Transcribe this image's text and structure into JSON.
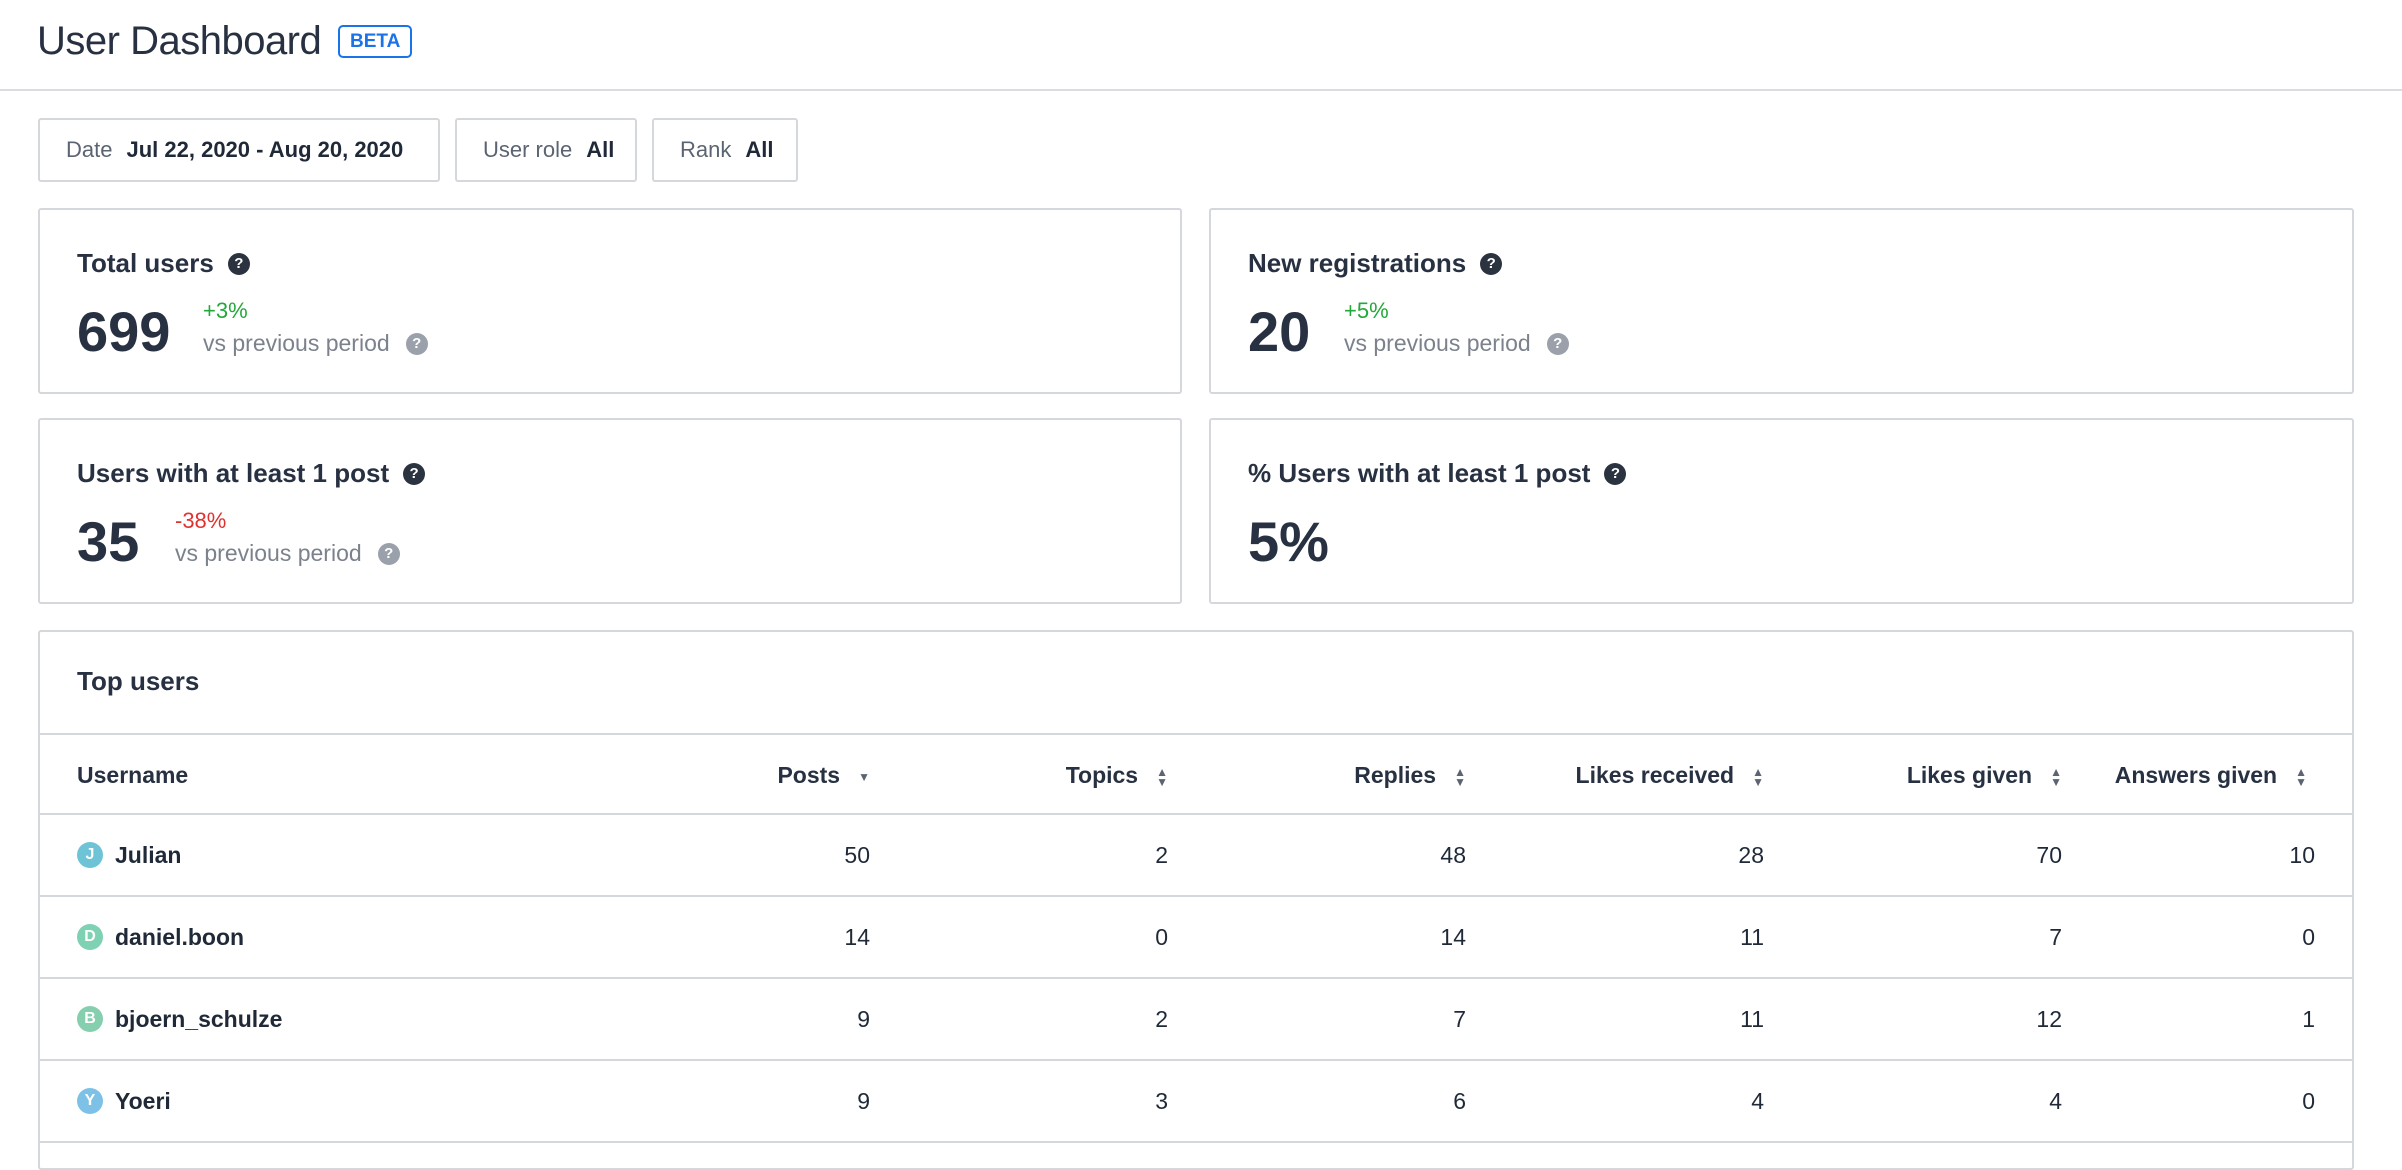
{
  "header": {
    "title": "User Dashboard",
    "badge": "BETA"
  },
  "filters": [
    {
      "label": "Date",
      "value": "Jul 22, 2020 - Aug 20, 2020"
    },
    {
      "label": "User role",
      "value": "All"
    },
    {
      "label": "Rank",
      "value": "All"
    }
  ],
  "stats": {
    "total_users": {
      "title": "Total users",
      "value": "699",
      "delta": "+3%",
      "compare": "vs previous period"
    },
    "new_registrations": {
      "title": "New registrations",
      "value": "20",
      "delta": "+5%",
      "compare": "vs previous period"
    },
    "users_with_post": {
      "title": "Users with at least 1 post",
      "value": "35",
      "delta": "-38%",
      "compare": "vs previous period"
    },
    "pct_users_with_post": {
      "title": "% Users with at least 1 post",
      "value": "5%"
    }
  },
  "top_users": {
    "title": "Top users",
    "columns": [
      "Username",
      "Posts",
      "Topics",
      "Replies",
      "Likes received",
      "Likes given",
      "Answers given"
    ],
    "rows": [
      {
        "avatar": "J",
        "avatar_color": "#6fc3d6",
        "username": "Julian",
        "posts": "50",
        "topics": "2",
        "replies": "48",
        "likes_received": "28",
        "likes_given": "70",
        "answers_given": "10"
      },
      {
        "avatar": "D",
        "avatar_color": "#7fd1b3",
        "username": "daniel.boon",
        "posts": "14",
        "topics": "0",
        "replies": "14",
        "likes_received": "11",
        "likes_given": "7",
        "answers_given": "0"
      },
      {
        "avatar": "B",
        "avatar_color": "#86cfae",
        "username": "bjoern_schulze",
        "posts": "9",
        "topics": "2",
        "replies": "7",
        "likes_received": "11",
        "likes_given": "12",
        "answers_given": "1"
      },
      {
        "avatar": "Y",
        "avatar_color": "#7ec1e6",
        "username": "Yoeri",
        "posts": "9",
        "topics": "3",
        "replies": "6",
        "likes_received": "4",
        "likes_given": "4",
        "answers_given": "0"
      }
    ]
  },
  "colors": {
    "accent": "#1a73e8",
    "positive": "#23a83a",
    "negative": "#e03131"
  }
}
